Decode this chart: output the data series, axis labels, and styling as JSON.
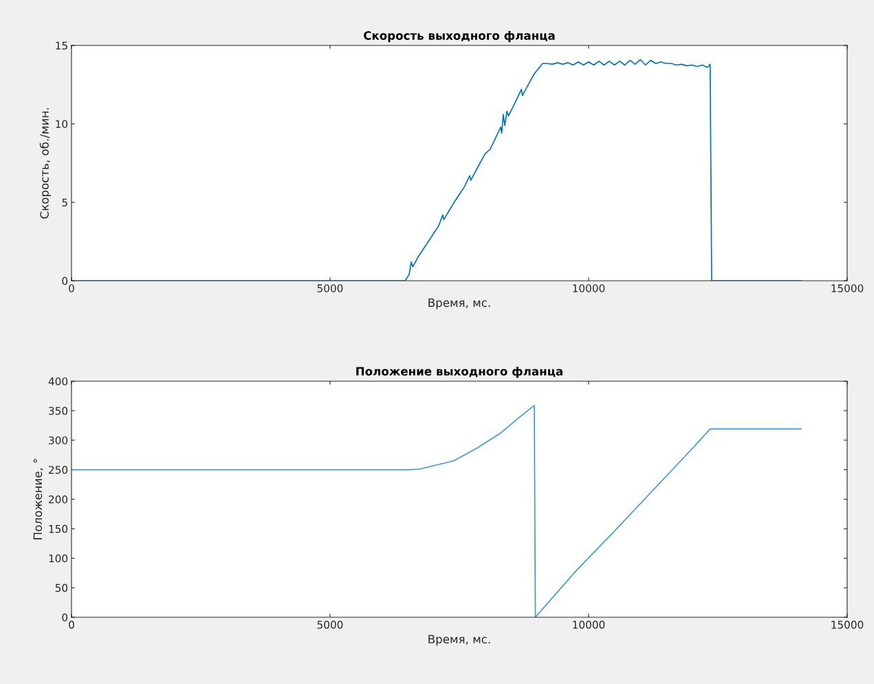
{
  "chart_data": [
    {
      "type": "line",
      "title": "Скорость выходного фланца",
      "xlabel": "Время, мс.",
      "ylabel": "Скорость, об./мин.",
      "xlim": [
        0,
        15000
      ],
      "ylim": [
        0,
        15
      ],
      "xticks": [
        0,
        5000,
        10000,
        15000
      ],
      "yticks": [
        0,
        5,
        10,
        15
      ],
      "grid": false,
      "series": [
        {
          "color": "#0072bd",
          "x": [
            0,
            6450,
            6530,
            6570,
            6600,
            6700,
            6900,
            7100,
            7180,
            7200,
            7400,
            7600,
            7700,
            7720,
            7900,
            8000,
            8100,
            8200,
            8300,
            8320,
            8350,
            8380,
            8420,
            8450,
            8600,
            8700,
            8720,
            8850,
            8950,
            9050,
            9110,
            9200,
            9300,
            9400,
            9500,
            9600,
            9700,
            9800,
            9900,
            10000,
            10100,
            10200,
            10300,
            10400,
            10500,
            10600,
            10700,
            10800,
            10900,
            11000,
            11100,
            11200,
            11300,
            11400,
            11500,
            11600,
            11700,
            11800,
            11900,
            12000,
            12100,
            12200,
            12300,
            12350,
            12380,
            14110
          ],
          "values": [
            0,
            0,
            0.4,
            1.2,
            0.9,
            1.5,
            2.5,
            3.5,
            4.2,
            3.9,
            5.0,
            6.0,
            6.7,
            6.4,
            7.5,
            8.1,
            8.4,
            9.1,
            9.8,
            9.4,
            10.6,
            9.9,
            10.8,
            10.5,
            11.5,
            12.2,
            11.8,
            12.6,
            13.2,
            13.6,
            13.85,
            13.85,
            13.8,
            13.9,
            13.8,
            13.9,
            13.75,
            13.95,
            13.75,
            13.95,
            13.75,
            14.0,
            13.75,
            14.0,
            13.75,
            14.0,
            13.75,
            14.05,
            13.8,
            14.1,
            13.75,
            14.05,
            13.85,
            13.95,
            13.85,
            13.85,
            13.75,
            13.8,
            13.7,
            13.75,
            13.65,
            13.75,
            13.6,
            13.8,
            0,
            0
          ]
        }
      ]
    },
    {
      "type": "line",
      "title": "Положение выходного фланца",
      "xlabel": "Время, мс.",
      "ylabel": "Положение, °",
      "xlim": [
        0,
        15000
      ],
      "ylim": [
        0,
        400
      ],
      "xticks": [
        0,
        5000,
        10000,
        15000
      ],
      "yticks": [
        0,
        50,
        100,
        150,
        200,
        250,
        300,
        350,
        400
      ],
      "grid": false,
      "series": [
        {
          "color": "#3d9ad6",
          "x": [
            0,
            6530,
            6730,
            7390,
            7830,
            8280,
            8720,
            8950,
            8970,
            9750,
            10490,
            12050,
            12090,
            12350,
            14110
          ],
          "values": [
            250,
            250,
            251,
            265,
            286,
            311,
            343,
            359,
            0,
            78,
            145,
            290,
            294,
            319,
            319
          ]
        }
      ]
    }
  ]
}
